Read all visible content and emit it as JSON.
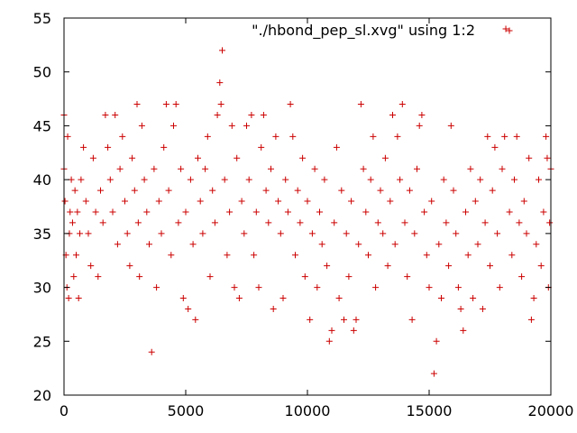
{
  "chart_data": {
    "type": "scatter",
    "title": "",
    "xlabel": "",
    "ylabel": "",
    "xlim": [
      0,
      20000
    ],
    "ylim": [
      20,
      55
    ],
    "x_ticks": [
      0,
      5000,
      10000,
      15000,
      20000
    ],
    "y_ticks": [
      20,
      25,
      30,
      35,
      40,
      45,
      50,
      55
    ],
    "grid": false,
    "legend_position": "top-right",
    "marker": "plus",
    "series": [
      {
        "name": "\"./hbond_pep_sl.xvg\" using 1:2",
        "color": "#cc0000",
        "points": [
          [
            0,
            46
          ],
          [
            0,
            41
          ],
          [
            40,
            38
          ],
          [
            80,
            33
          ],
          [
            120,
            30
          ],
          [
            150,
            44
          ],
          [
            190,
            29
          ],
          [
            220,
            35
          ],
          [
            250,
            37
          ],
          [
            300,
            40
          ],
          [
            350,
            36
          ],
          [
            400,
            31
          ],
          [
            450,
            39
          ],
          [
            500,
            33
          ],
          [
            550,
            37
          ],
          [
            600,
            29
          ],
          [
            650,
            35
          ],
          [
            700,
            40
          ],
          [
            800,
            43
          ],
          [
            900,
            38
          ],
          [
            1000,
            35
          ],
          [
            1100,
            32
          ],
          [
            1200,
            42
          ],
          [
            1300,
            37
          ],
          [
            1400,
            31
          ],
          [
            1500,
            39
          ],
          [
            1600,
            36
          ],
          [
            1700,
            46
          ],
          [
            1800,
            43
          ],
          [
            1900,
            40
          ],
          [
            2000,
            37
          ],
          [
            2100,
            46
          ],
          [
            2200,
            34
          ],
          [
            2300,
            41
          ],
          [
            2400,
            44
          ],
          [
            2500,
            38
          ],
          [
            2600,
            35
          ],
          [
            2700,
            32
          ],
          [
            2800,
            42
          ],
          [
            2900,
            39
          ],
          [
            3000,
            47
          ],
          [
            3050,
            36
          ],
          [
            3100,
            31
          ],
          [
            3200,
            45
          ],
          [
            3300,
            40
          ],
          [
            3400,
            37
          ],
          [
            3500,
            34
          ],
          [
            3600,
            24
          ],
          [
            3700,
            41
          ],
          [
            3800,
            30
          ],
          [
            3900,
            38
          ],
          [
            4000,
            35
          ],
          [
            4100,
            43
          ],
          [
            4200,
            47
          ],
          [
            4300,
            39
          ],
          [
            4400,
            33
          ],
          [
            4500,
            45
          ],
          [
            4600,
            47
          ],
          [
            4700,
            36
          ],
          [
            4800,
            41
          ],
          [
            4900,
            29
          ],
          [
            5000,
            37
          ],
          [
            5100,
            28
          ],
          [
            5200,
            40
          ],
          [
            5300,
            34
          ],
          [
            5400,
            27
          ],
          [
            5500,
            42
          ],
          [
            5600,
            38
          ],
          [
            5700,
            35
          ],
          [
            5800,
            41
          ],
          [
            5900,
            44
          ],
          [
            6000,
            31
          ],
          [
            6100,
            39
          ],
          [
            6200,
            36
          ],
          [
            6300,
            46
          ],
          [
            6400,
            49
          ],
          [
            6450,
            47
          ],
          [
            6500,
            52
          ],
          [
            6600,
            40
          ],
          [
            6700,
            33
          ],
          [
            6800,
            37
          ],
          [
            6900,
            45
          ],
          [
            7000,
            30
          ],
          [
            7100,
            42
          ],
          [
            7200,
            29
          ],
          [
            7300,
            38
          ],
          [
            7400,
            35
          ],
          [
            7500,
            45
          ],
          [
            7600,
            40
          ],
          [
            7700,
            46
          ],
          [
            7800,
            33
          ],
          [
            7900,
            37
          ],
          [
            8000,
            30
          ],
          [
            8100,
            43
          ],
          [
            8200,
            46
          ],
          [
            8300,
            39
          ],
          [
            8400,
            36
          ],
          [
            8500,
            41
          ],
          [
            8600,
            28
          ],
          [
            8700,
            44
          ],
          [
            8800,
            38
          ],
          [
            8900,
            35
          ],
          [
            9000,
            29
          ],
          [
            9100,
            40
          ],
          [
            9200,
            37
          ],
          [
            9300,
            47
          ],
          [
            9400,
            44
          ],
          [
            9500,
            33
          ],
          [
            9600,
            39
          ],
          [
            9700,
            36
          ],
          [
            9800,
            42
          ],
          [
            9900,
            31
          ],
          [
            10000,
            38
          ],
          [
            10100,
            27
          ],
          [
            10200,
            35
          ],
          [
            10300,
            41
          ],
          [
            10400,
            30
          ],
          [
            10500,
            37
          ],
          [
            10600,
            34
          ],
          [
            10700,
            40
          ],
          [
            10800,
            32
          ],
          [
            10900,
            25
          ],
          [
            11000,
            26
          ],
          [
            11100,
            36
          ],
          [
            11200,
            43
          ],
          [
            11300,
            29
          ],
          [
            11400,
            39
          ],
          [
            11500,
            27
          ],
          [
            11600,
            35
          ],
          [
            11700,
            31
          ],
          [
            11800,
            38
          ],
          [
            11900,
            26
          ],
          [
            12000,
            27
          ],
          [
            12100,
            34
          ],
          [
            12200,
            47
          ],
          [
            12300,
            41
          ],
          [
            12400,
            37
          ],
          [
            12500,
            33
          ],
          [
            12600,
            40
          ],
          [
            12700,
            44
          ],
          [
            12800,
            30
          ],
          [
            12900,
            36
          ],
          [
            13000,
            39
          ],
          [
            13100,
            35
          ],
          [
            13200,
            42
          ],
          [
            13300,
            32
          ],
          [
            13400,
            38
          ],
          [
            13500,
            46
          ],
          [
            13600,
            34
          ],
          [
            13700,
            44
          ],
          [
            13800,
            40
          ],
          [
            13900,
            47
          ],
          [
            14000,
            36
          ],
          [
            14100,
            31
          ],
          [
            14200,
            39
          ],
          [
            14300,
            27
          ],
          [
            14400,
            35
          ],
          [
            14500,
            41
          ],
          [
            14600,
            45
          ],
          [
            14700,
            46
          ],
          [
            14800,
            37
          ],
          [
            14900,
            33
          ],
          [
            15000,
            30
          ],
          [
            15100,
            38
          ],
          [
            15200,
            22
          ],
          [
            15300,
            25
          ],
          [
            15400,
            34
          ],
          [
            15500,
            29
          ],
          [
            15600,
            40
          ],
          [
            15700,
            36
          ],
          [
            15800,
            32
          ],
          [
            15900,
            45
          ],
          [
            16000,
            39
          ],
          [
            16100,
            35
          ],
          [
            16200,
            30
          ],
          [
            16300,
            28
          ],
          [
            16400,
            26
          ],
          [
            16500,
            37
          ],
          [
            16600,
            33
          ],
          [
            16700,
            41
          ],
          [
            16800,
            29
          ],
          [
            16900,
            38
          ],
          [
            17000,
            34
          ],
          [
            17100,
            40
          ],
          [
            17200,
            28
          ],
          [
            17300,
            36
          ],
          [
            17400,
            44
          ],
          [
            17500,
            32
          ],
          [
            17600,
            39
          ],
          [
            17700,
            43
          ],
          [
            17800,
            35
          ],
          [
            17900,
            30
          ],
          [
            18000,
            41
          ],
          [
            18100,
            44
          ],
          [
            18150,
            54
          ],
          [
            18300,
            37
          ],
          [
            18400,
            33
          ],
          [
            18500,
            40
          ],
          [
            18600,
            44
          ],
          [
            18700,
            36
          ],
          [
            18800,
            31
          ],
          [
            18900,
            38
          ],
          [
            19000,
            35
          ],
          [
            19100,
            42
          ],
          [
            19200,
            27
          ],
          [
            19300,
            29
          ],
          [
            19400,
            34
          ],
          [
            19500,
            40
          ],
          [
            19600,
            32
          ],
          [
            19700,
            37
          ],
          [
            19800,
            44
          ],
          [
            19850,
            42
          ],
          [
            19900,
            30
          ],
          [
            19950,
            36
          ],
          [
            20000,
            41
          ]
        ]
      }
    ]
  }
}
